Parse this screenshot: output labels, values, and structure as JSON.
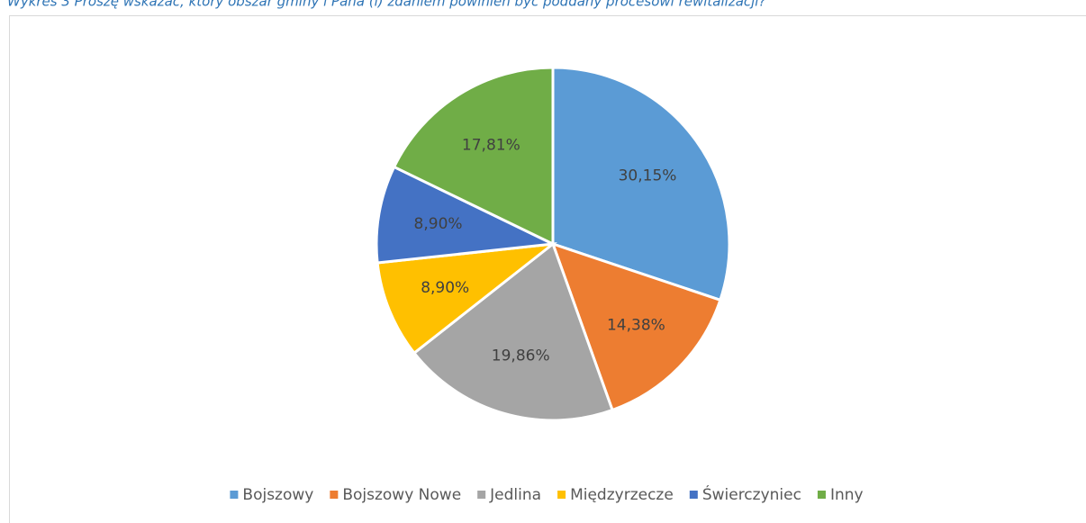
{
  "chart_data": {
    "type": "pie",
    "title": "Wykres 3 Proszę wskazać, który obszar gminy i Pana (i) zdaniem powinien być poddany procesowi rewitalizacji?",
    "categories": [
      "Bojszowy",
      "Bojszowy Nowe",
      "Jedlina",
      "Międzyrzecze",
      "Świerczyniec",
      "Inny"
    ],
    "values": [
      30.15,
      14.38,
      19.86,
      8.9,
      8.9,
      17.81
    ],
    "value_labels": [
      "30,15%",
      "14,38%",
      "19,86%",
      "8,90%",
      "8,90%",
      "17,81%"
    ],
    "colors": [
      "#5b9bd5",
      "#ed7d31",
      "#a5a5a5",
      "#ffc000",
      "#4472c4",
      "#70ad47"
    ],
    "legend": "bottom"
  }
}
